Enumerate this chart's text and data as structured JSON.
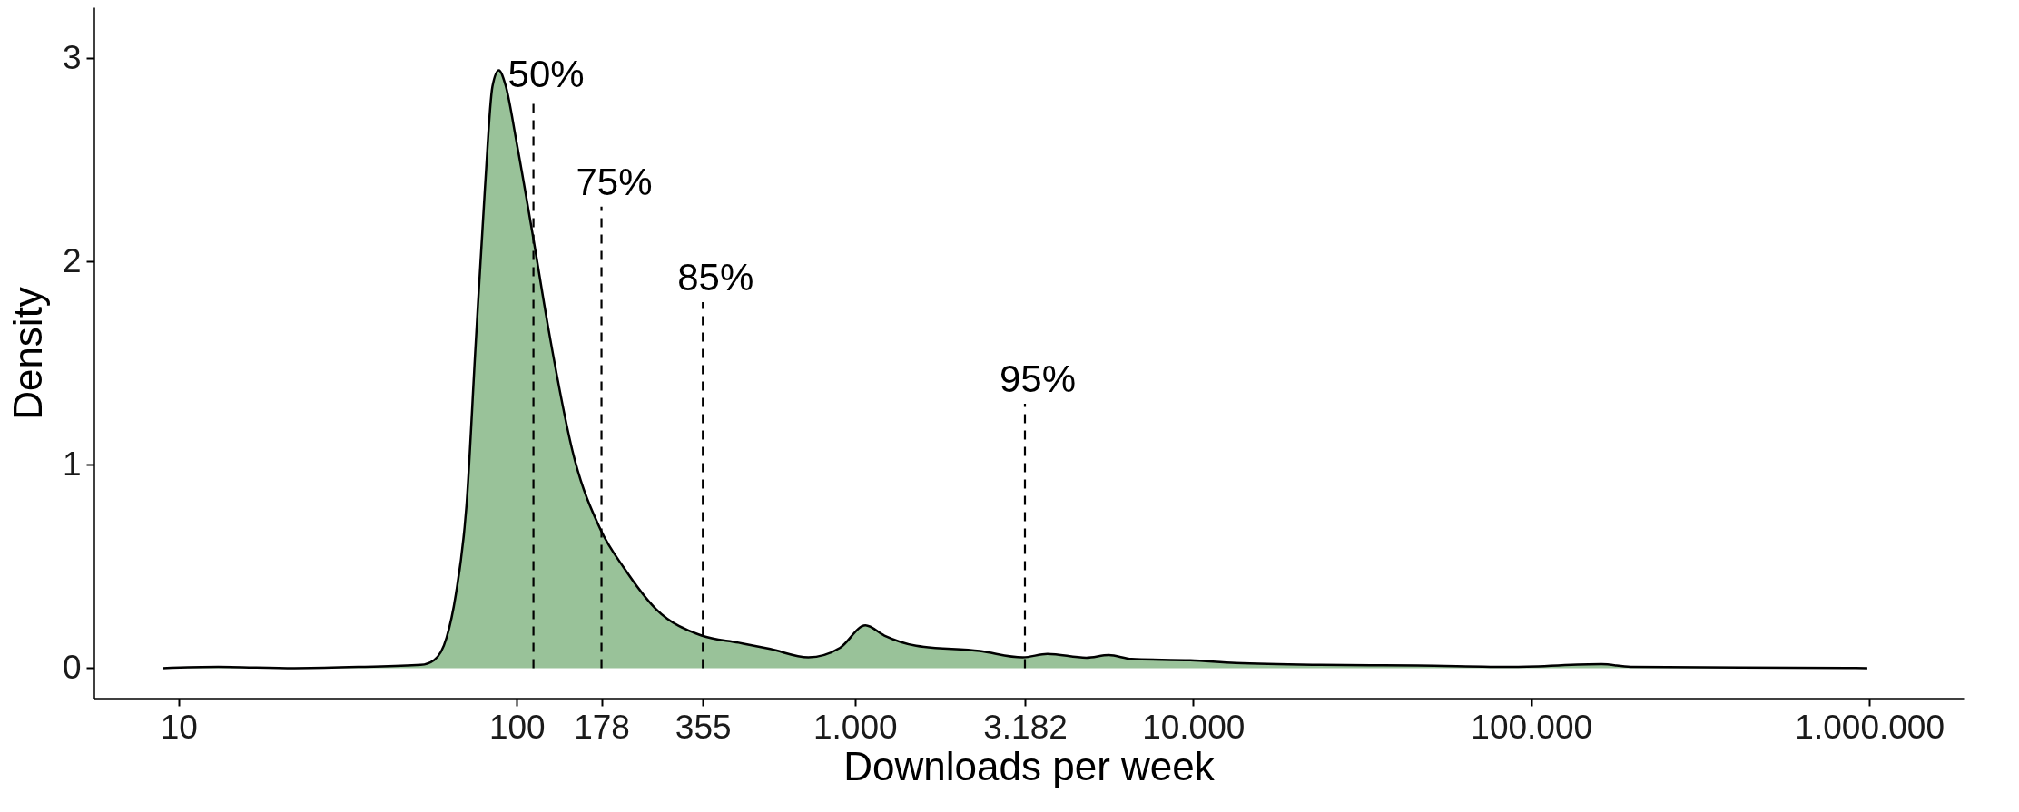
{
  "chart_data": {
    "type": "area",
    "xlabel": "Downloads per week",
    "ylabel": "Density",
    "x": [
      8.97,
      13.1,
      22,
      34,
      52,
      57,
      62,
      66,
      71,
      75.5,
      80.5,
      84.7,
      88.5,
      92.5,
      100,
      112,
      124,
      147,
      177,
      208,
      258,
      352,
      453,
      562,
      728,
      904,
      1074,
      1222,
      1517,
      2339,
      3133,
      3710,
      4831,
      5636,
      6577,
      9817,
      13366,
      23714,
      46026,
      89125,
      161436,
      196789,
      416869,
      986279
    ],
    "series": [
      {
        "color": "#99c299",
        "values": [
          0,
          0.006,
          0,
          0.006,
          0.016,
          0.04,
          0.15,
          0.36,
          0.8,
          1.58,
          2.36,
          2.86,
          2.94,
          2.87,
          2.58,
          2.11,
          1.67,
          1.05,
          0.68,
          0.49,
          0.29,
          0.16,
          0.125,
          0.094,
          0.053,
          0.1,
          0.21,
          0.16,
          0.11,
          0.084,
          0.053,
          0.07,
          0.051,
          0.064,
          0.045,
          0.038,
          0.025,
          0.016,
          0.013,
          0.006,
          0.019,
          0.006,
          0.003,
          0
        ]
      }
    ],
    "log": "x",
    "xlim": [
      5.6,
      1900000
    ],
    "ylim": [
      -0.15,
      3.25
    ],
    "xticks": [
      10,
      100,
      178,
      355,
      {
        "value": 1000,
        "label": "1.000"
      },
      {
        "value": 3182,
        "label": "3.182"
      },
      {
        "value": 10000,
        "label": "10.000"
      },
      {
        "value": 100000,
        "label": "100.000"
      },
      {
        "value": 1000000,
        "label": "1.000.000"
      }
    ],
    "yticks": [
      0,
      1,
      2,
      3
    ],
    "grid": false,
    "ref_lines": [
      {
        "axis": "x",
        "value": 112,
        "line_style": "dashed"
      },
      {
        "axis": "x",
        "value": 178,
        "line_style": "dashed"
      },
      {
        "axis": "x",
        "value": 355,
        "line_style": "dashed"
      },
      {
        "axis": "x",
        "value": 3182,
        "line_style": "dashed"
      }
    ],
    "annotations": [
      {
        "text": "50%",
        "x": 112,
        "y": 2.8
      },
      {
        "text": "75%",
        "x": 178,
        "y": 2.27
      },
      {
        "text": "85%",
        "x": 355,
        "y": 1.8
      },
      {
        "text": "95%",
        "x": 3182,
        "y": 1.3
      }
    ]
  }
}
